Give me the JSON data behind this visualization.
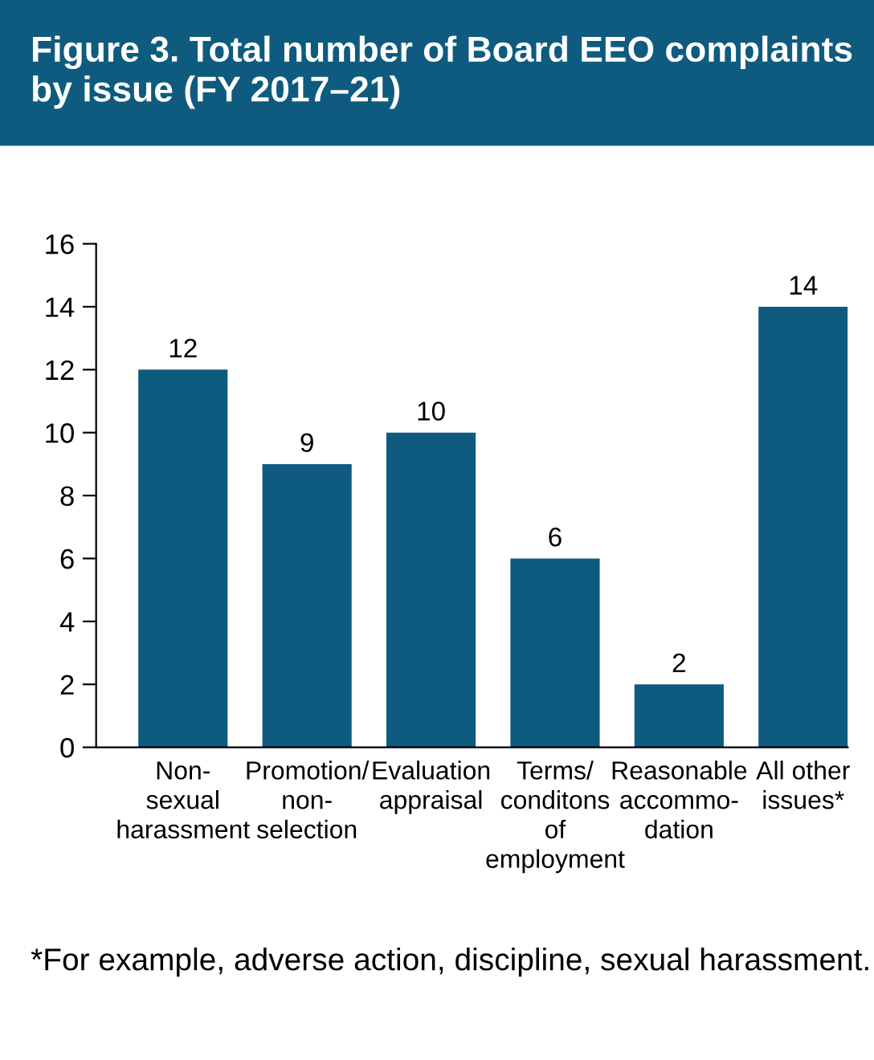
{
  "chart_data": {
    "type": "bar",
    "title": "Figure 3. Total number of Board EEO complaints by issue (FY 2017–21)",
    "categories": [
      "Non-\nsexual\nharassment",
      "Promotion/\nnon-\nselection",
      "Evaluation\nappraisal",
      "Terms/\nconditons\nof\nemployment",
      "Reasonable\naccommo-\ndation",
      "All other\nissues*"
    ],
    "values": [
      12,
      9,
      10,
      6,
      2,
      14
    ],
    "color": "#0f5b7f",
    "ylim": [
      0,
      16
    ],
    "yticks": [
      0,
      2,
      4,
      6,
      8,
      10,
      12,
      14,
      16
    ],
    "data_labels": true,
    "annotations": [
      "*For example, adverse action, discipline, sexual harassment."
    ]
  }
}
